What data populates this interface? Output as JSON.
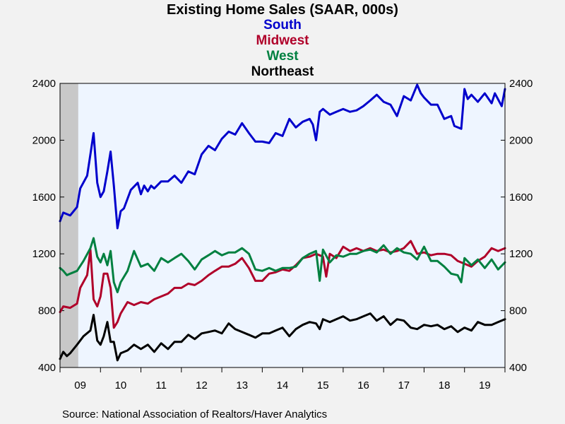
{
  "chart_data": {
    "type": "line",
    "title": "Existing Home Sales (SAAR, 000s)",
    "source": "Source:  National Association of Realtors/Haver Analytics",
    "ylim": [
      400,
      2400
    ],
    "yticks": [
      400,
      800,
      1200,
      1600,
      2000,
      2400
    ],
    "ytick_labels": [
      "400",
      "800",
      "1200",
      "1600",
      "2000",
      "2400"
    ],
    "x_unit": "year",
    "xlim": [
      2009.0,
      2020.0
    ],
    "x_labels": [
      {
        "at": 2009.5,
        "label": "09"
      },
      {
        "at": 2010.5,
        "label": "10"
      },
      {
        "at": 2011.5,
        "label": "11"
      },
      {
        "at": 2012.5,
        "label": "12"
      },
      {
        "at": 2013.5,
        "label": "13"
      },
      {
        "at": 2014.5,
        "label": "14"
      },
      {
        "at": 2015.5,
        "label": "15"
      },
      {
        "at": 2016.5,
        "label": "16"
      },
      {
        "at": 2017.5,
        "label": "17"
      },
      {
        "at": 2018.5,
        "label": "18"
      },
      {
        "at": 2019.5,
        "label": "19"
      }
    ],
    "recession": [
      2009.0,
      2009.45
    ],
    "background_color": "#eef5ff",
    "recession_color": "#c8c8c8",
    "series": [
      {
        "name": "South",
        "color": "#0000cc",
        "x": [
          2009.0,
          2009.08,
          2009.25,
          2009.42,
          2009.5,
          2009.67,
          2009.75,
          2009.83,
          2009.92,
          2010.0,
          2010.08,
          2010.17,
          2010.25,
          2010.33,
          2010.42,
          2010.5,
          2010.58,
          2010.75,
          2010.92,
          2011.0,
          2011.08,
          2011.17,
          2011.25,
          2011.33,
          2011.5,
          2011.67,
          2011.83,
          2012.0,
          2012.17,
          2012.33,
          2012.5,
          2012.67,
          2012.83,
          2013.0,
          2013.17,
          2013.33,
          2013.5,
          2013.67,
          2013.83,
          2014.0,
          2014.17,
          2014.33,
          2014.5,
          2014.67,
          2014.83,
          2015.0,
          2015.17,
          2015.25,
          2015.33,
          2015.42,
          2015.5,
          2015.67,
          2015.83,
          2016.0,
          2016.17,
          2016.33,
          2016.5,
          2016.67,
          2016.83,
          2017.0,
          2017.17,
          2017.33,
          2017.5,
          2017.67,
          2017.83,
          2017.92,
          2018.0,
          2018.17,
          2018.33,
          2018.5,
          2018.67,
          2018.75,
          2018.92,
          2019.0,
          2019.08,
          2019.17,
          2019.33,
          2019.5,
          2019.67,
          2019.75,
          2019.92,
          2020.0
        ],
        "values": [
          1430,
          1490,
          1470,
          1530,
          1660,
          1750,
          1900,
          2050,
          1700,
          1600,
          1640,
          1780,
          1920,
          1680,
          1380,
          1500,
          1520,
          1650,
          1700,
          1620,
          1680,
          1640,
          1680,
          1660,
          1710,
          1710,
          1750,
          1700,
          1780,
          1760,
          1900,
          1960,
          1930,
          2010,
          2060,
          2040,
          2120,
          2050,
          1990,
          1990,
          1980,
          2050,
          2030,
          2150,
          2090,
          2130,
          2150,
          2110,
          2000,
          2200,
          2220,
          2180,
          2200,
          2220,
          2200,
          2210,
          2240,
          2280,
          2320,
          2270,
          2250,
          2170,
          2310,
          2280,
          2390,
          2330,
          2300,
          2250,
          2250,
          2150,
          2170,
          2100,
          2080,
          2360,
          2290,
          2320,
          2270,
          2330,
          2260,
          2330,
          2240,
          2360
        ]
      },
      {
        "name": "Midwest",
        "color": "#b0002a",
        "x": [
          2009.0,
          2009.08,
          2009.25,
          2009.42,
          2009.5,
          2009.67,
          2009.75,
          2009.83,
          2009.92,
          2010.0,
          2010.08,
          2010.17,
          2010.25,
          2010.33,
          2010.42,
          2010.5,
          2010.67,
          2010.83,
          2011.0,
          2011.17,
          2011.33,
          2011.5,
          2011.67,
          2011.83,
          2012.0,
          2012.17,
          2012.33,
          2012.5,
          2012.67,
          2012.83,
          2013.0,
          2013.17,
          2013.33,
          2013.5,
          2013.67,
          2013.83,
          2014.0,
          2014.17,
          2014.33,
          2014.5,
          2014.67,
          2014.83,
          2015.0,
          2015.17,
          2015.33,
          2015.5,
          2015.58,
          2015.67,
          2015.83,
          2016.0,
          2016.17,
          2016.33,
          2016.5,
          2016.67,
          2016.83,
          2017.0,
          2017.17,
          2017.33,
          2017.5,
          2017.67,
          2017.83,
          2018.0,
          2018.17,
          2018.33,
          2018.5,
          2018.67,
          2018.83,
          2019.0,
          2019.17,
          2019.33,
          2019.5,
          2019.67,
          2019.83,
          2020.0
        ],
        "values": [
          790,
          830,
          820,
          850,
          960,
          1050,
          1230,
          880,
          830,
          900,
          1060,
          1060,
          960,
          680,
          720,
          780,
          860,
          840,
          860,
          850,
          880,
          900,
          920,
          960,
          960,
          990,
          980,
          1010,
          1050,
          1080,
          1110,
          1110,
          1130,
          1170,
          1100,
          1010,
          1010,
          1060,
          1070,
          1090,
          1080,
          1120,
          1170,
          1180,
          1200,
          1180,
          1040,
          1200,
          1170,
          1250,
          1220,
          1240,
          1220,
          1240,
          1220,
          1230,
          1210,
          1220,
          1240,
          1290,
          1200,
          1210,
          1190,
          1200,
          1200,
          1190,
          1150,
          1130,
          1110,
          1150,
          1180,
          1240,
          1220,
          1240
        ]
      },
      {
        "name": "West",
        "color": "#008040",
        "x": [
          2009.0,
          2009.08,
          2009.17,
          2009.25,
          2009.42,
          2009.58,
          2009.75,
          2009.83,
          2009.92,
          2010.0,
          2010.08,
          2010.17,
          2010.25,
          2010.33,
          2010.42,
          2010.5,
          2010.67,
          2010.83,
          2011.0,
          2011.17,
          2011.33,
          2011.5,
          2011.67,
          2011.83,
          2012.0,
          2012.17,
          2012.33,
          2012.5,
          2012.67,
          2012.83,
          2013.0,
          2013.17,
          2013.33,
          2013.5,
          2013.67,
          2013.83,
          2014.0,
          2014.17,
          2014.33,
          2014.5,
          2014.67,
          2014.83,
          2015.0,
          2015.17,
          2015.33,
          2015.42,
          2015.5,
          2015.67,
          2015.83,
          2016.0,
          2016.17,
          2016.33,
          2016.5,
          2016.67,
          2016.83,
          2017.0,
          2017.17,
          2017.33,
          2017.5,
          2017.67,
          2017.83,
          2018.0,
          2018.17,
          2018.33,
          2018.5,
          2018.67,
          2018.83,
          2018.92,
          2019.0,
          2019.17,
          2019.33,
          2019.5,
          2019.67,
          2019.83,
          2020.0
        ],
        "values": [
          1100,
          1080,
          1050,
          1060,
          1080,
          1150,
          1240,
          1310,
          1180,
          1140,
          1200,
          1120,
          1220,
          1000,
          930,
          1000,
          1080,
          1220,
          1110,
          1130,
          1080,
          1170,
          1140,
          1170,
          1200,
          1150,
          1090,
          1160,
          1190,
          1220,
          1190,
          1210,
          1210,
          1240,
          1200,
          1090,
          1080,
          1100,
          1080,
          1100,
          1100,
          1110,
          1170,
          1200,
          1220,
          1010,
          1230,
          1140,
          1190,
          1180,
          1200,
          1200,
          1220,
          1230,
          1210,
          1260,
          1200,
          1240,
          1210,
          1200,
          1160,
          1250,
          1150,
          1150,
          1110,
          1060,
          1050,
          1000,
          1170,
          1120,
          1160,
          1100,
          1160,
          1090,
          1140
        ]
      },
      {
        "name": "Northeast",
        "color": "#000000",
        "x": [
          2009.0,
          2009.08,
          2009.17,
          2009.25,
          2009.42,
          2009.58,
          2009.75,
          2009.83,
          2009.92,
          2010.0,
          2010.08,
          2010.17,
          2010.25,
          2010.33,
          2010.42,
          2010.5,
          2010.67,
          2010.83,
          2011.0,
          2011.17,
          2011.33,
          2011.5,
          2011.67,
          2011.83,
          2012.0,
          2012.17,
          2012.33,
          2012.5,
          2012.67,
          2012.83,
          2013.0,
          2013.17,
          2013.33,
          2013.5,
          2013.67,
          2013.83,
          2014.0,
          2014.17,
          2014.33,
          2014.5,
          2014.67,
          2014.83,
          2015.0,
          2015.17,
          2015.33,
          2015.42,
          2015.5,
          2015.67,
          2015.83,
          2016.0,
          2016.17,
          2016.33,
          2016.5,
          2016.67,
          2016.83,
          2017.0,
          2017.17,
          2017.33,
          2017.5,
          2017.67,
          2017.83,
          2018.0,
          2018.17,
          2018.33,
          2018.5,
          2018.67,
          2018.83,
          2019.0,
          2019.17,
          2019.33,
          2019.5,
          2019.67,
          2019.83,
          2020.0
        ],
        "values": [
          460,
          510,
          480,
          500,
          560,
          620,
          660,
          770,
          590,
          560,
          620,
          720,
          580,
          580,
          450,
          500,
          520,
          560,
          530,
          560,
          510,
          570,
          530,
          580,
          580,
          630,
          600,
          640,
          650,
          660,
          640,
          710,
          670,
          650,
          630,
          610,
          640,
          640,
          660,
          680,
          620,
          670,
          700,
          720,
          710,
          670,
          740,
          720,
          740,
          760,
          730,
          740,
          760,
          780,
          730,
          760,
          700,
          740,
          730,
          680,
          670,
          700,
          690,
          700,
          670,
          690,
          650,
          680,
          660,
          720,
          700,
          700,
          720,
          740
        ]
      }
    ]
  }
}
